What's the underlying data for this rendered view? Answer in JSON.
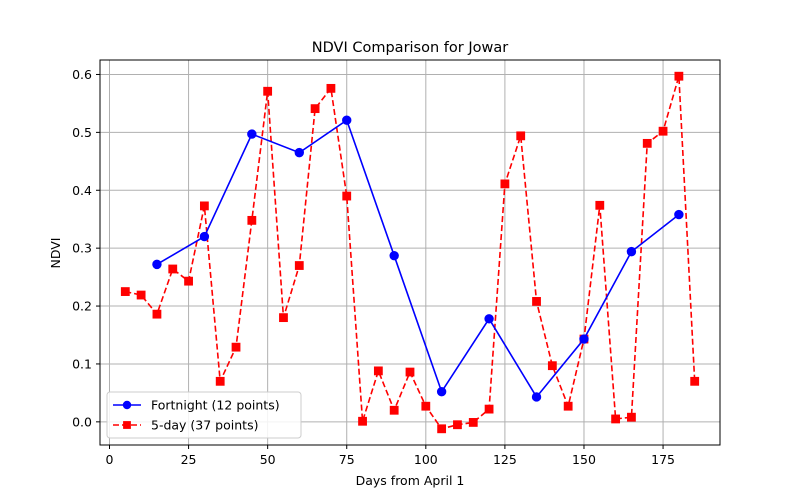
{
  "chart_data": {
    "type": "line",
    "title": "NDVI Comparison for Jowar",
    "xlabel": "Days from April 1",
    "ylabel": "NDVI",
    "xlim": [
      -3,
      193
    ],
    "ylim": [
      -0.04,
      0.625
    ],
    "xticks": [
      0,
      25,
      50,
      75,
      100,
      125,
      150,
      175
    ],
    "yticks": [
      0.0,
      0.1,
      0.2,
      0.3,
      0.4,
      0.5,
      0.6
    ],
    "xtick_labels": [
      "0",
      "25",
      "50",
      "75",
      "100",
      "125",
      "150",
      "175"
    ],
    "ytick_labels": [
      "0.0",
      "0.1",
      "0.2",
      "0.3",
      "0.4",
      "0.5",
      "0.6"
    ],
    "grid": true,
    "legend_position": "lower-left",
    "series": [
      {
        "name": "Fortnight (12 points)",
        "color": "#0000ff",
        "linestyle": "solid",
        "marker": "circle",
        "x": [
          15,
          30,
          45,
          60,
          75,
          90,
          105,
          120,
          135,
          150,
          165,
          180
        ],
        "y": [
          0.272,
          0.32,
          0.497,
          0.465,
          0.521,
          0.287,
          0.052,
          0.178,
          0.043,
          0.143,
          0.294,
          0.358
        ]
      },
      {
        "name": "5-day (37 points)",
        "color": "#ff0000",
        "linestyle": "dashed",
        "marker": "square",
        "x": [
          5,
          10,
          15,
          20,
          25,
          30,
          35,
          40,
          45,
          50,
          55,
          60,
          65,
          70,
          75,
          80,
          85,
          90,
          95,
          100,
          105,
          110,
          115,
          120,
          125,
          130,
          135,
          140,
          145,
          150,
          155,
          160,
          165,
          170,
          175,
          180,
          185
        ],
        "y": [
          0.225,
          0.219,
          0.186,
          0.264,
          0.243,
          0.373,
          0.07,
          0.129,
          0.348,
          0.571,
          0.18,
          0.27,
          0.541,
          0.576,
          0.39,
          0.001,
          0.088,
          0.02,
          0.086,
          0.027,
          -0.012,
          -0.005,
          -0.001,
          0.022,
          0.411,
          0.494,
          0.208,
          0.097,
          0.027,
          0.143,
          0.374,
          0.005,
          0.008,
          0.481,
          0.502,
          0.597,
          0.07
        ]
      }
    ]
  }
}
